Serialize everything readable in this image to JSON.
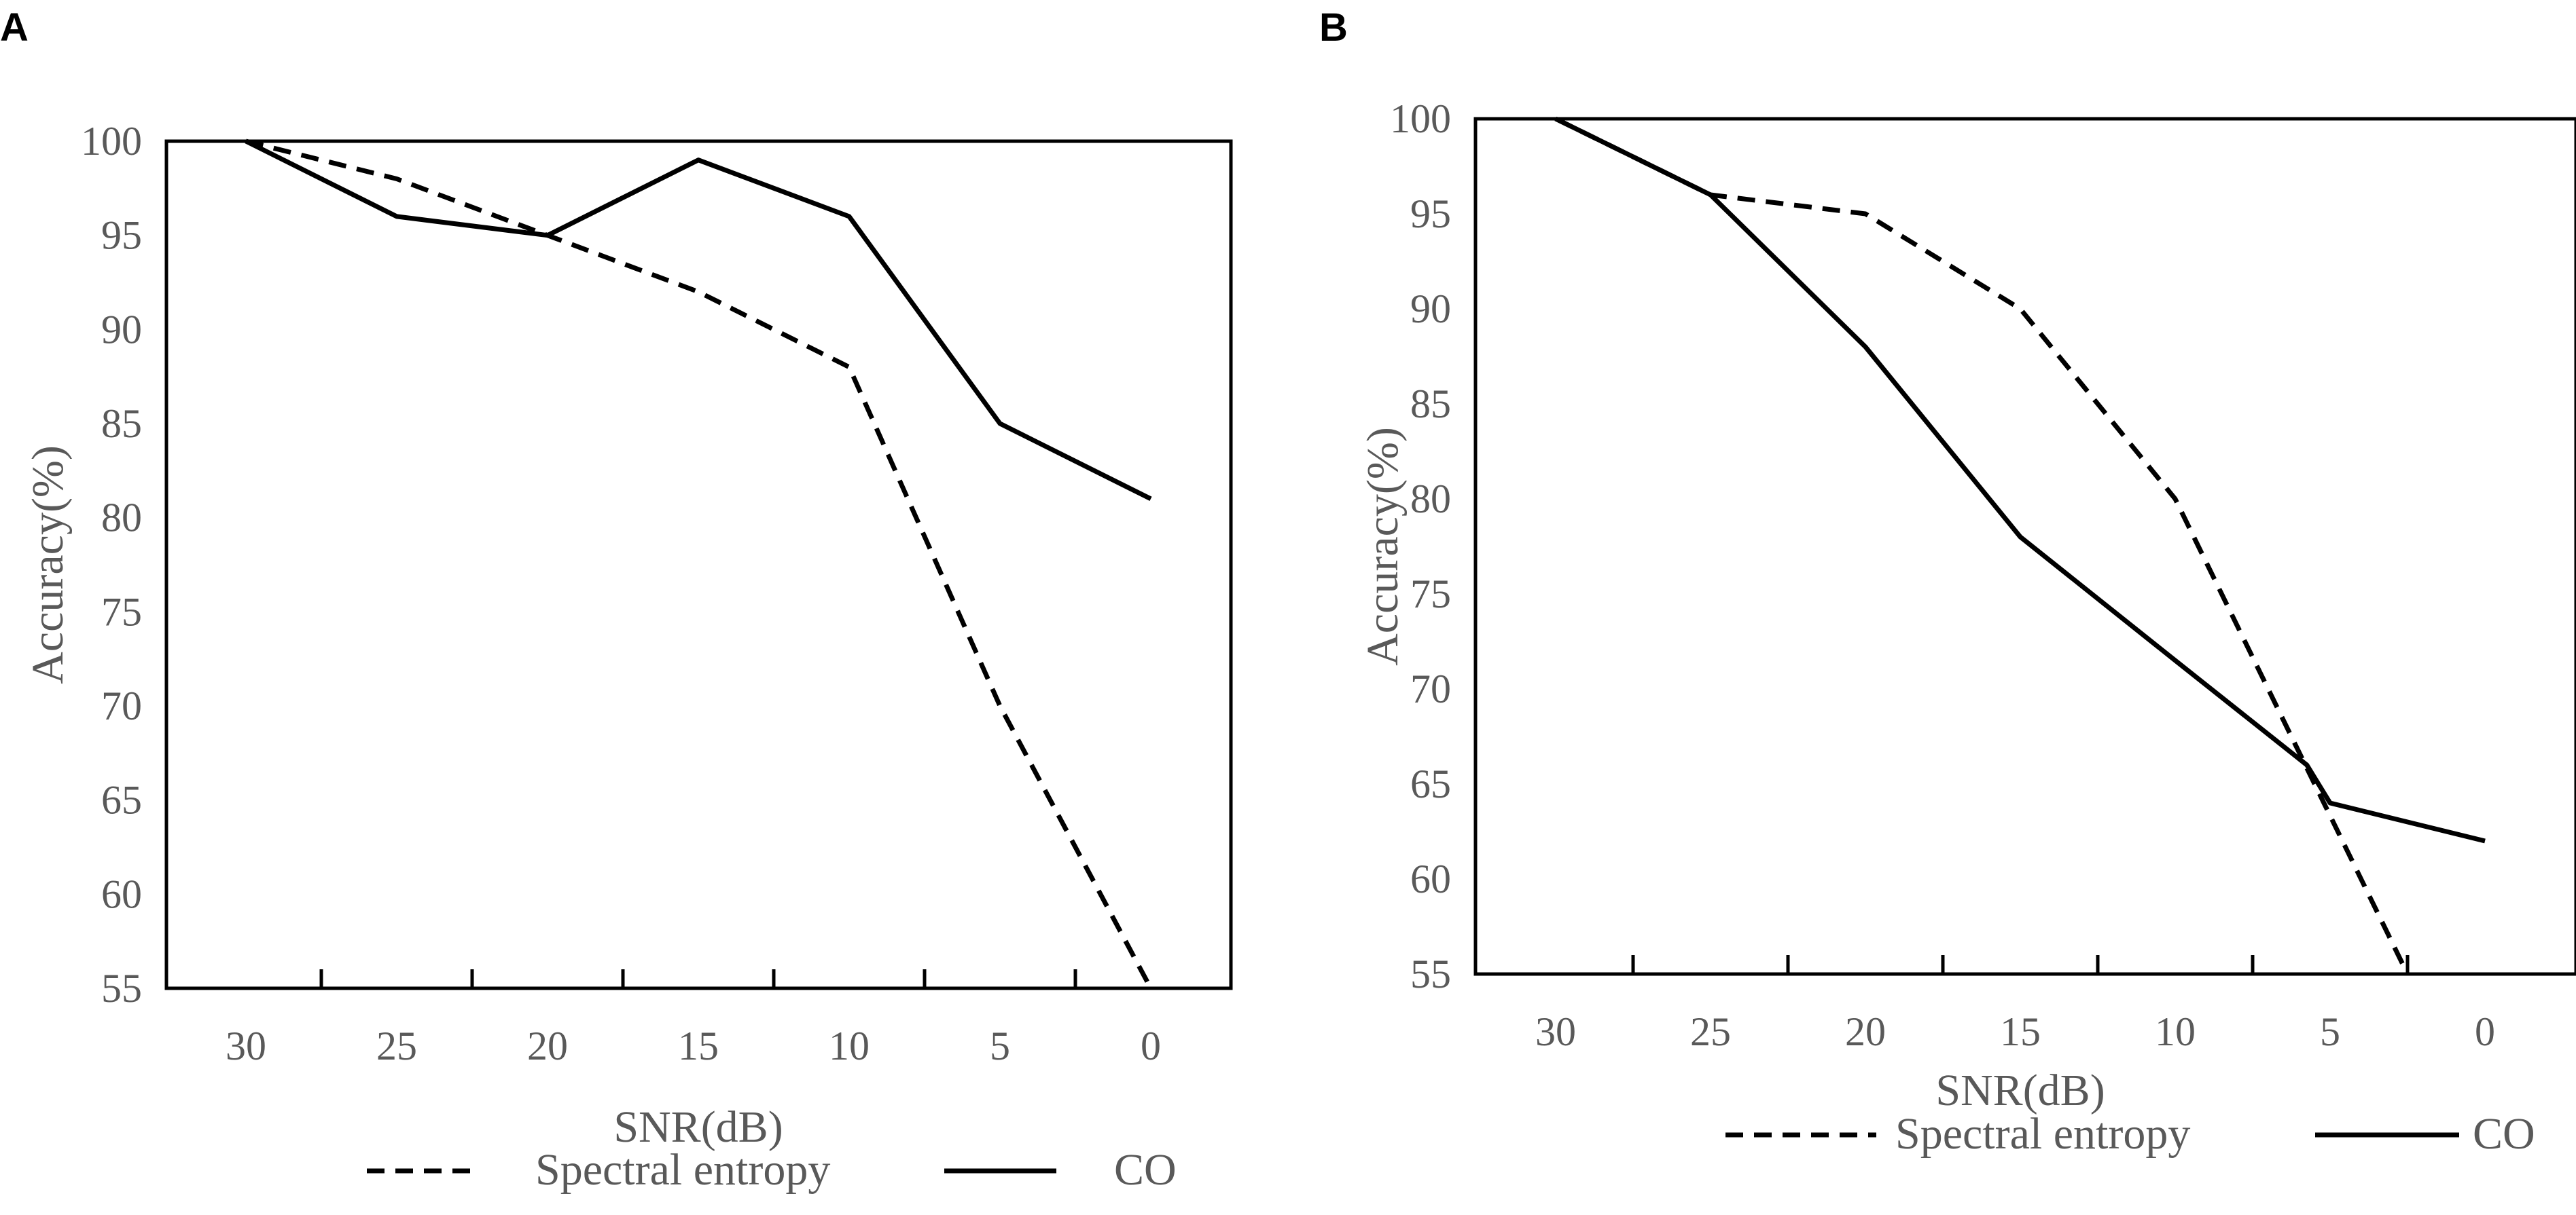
{
  "chart_data": [
    {
      "panel": "A",
      "type": "line",
      "xlabel": "SNR(dB)",
      "ylabel": "Accuracy(%)",
      "categories": [
        "30",
        "25",
        "20",
        "15",
        "10",
        "5",
        "0"
      ],
      "yticks": [
        "55",
        "60",
        "65",
        "70",
        "75",
        "80",
        "85",
        "90",
        "95",
        "100"
      ],
      "ylim": [
        55,
        100
      ],
      "series": [
        {
          "name": "Spectral entropy",
          "style": "dashed",
          "values": [
            100,
            98,
            95,
            92,
            88,
            70,
            55
          ]
        },
        {
          "name": "CO",
          "style": "solid",
          "values": [
            100,
            96,
            95,
            99,
            96,
            85,
            81
          ]
        }
      ],
      "legend_position": "bottom"
    },
    {
      "panel": "B",
      "type": "line",
      "xlabel": "SNR(dB)",
      "ylabel": "Accuracy(%)",
      "categories": [
        "30",
        "25",
        "20",
        "15",
        "10",
        "5",
        "0"
      ],
      "yticks": [
        "55",
        "60",
        "65",
        "70",
        "75",
        "80",
        "85",
        "90",
        "95",
        "100"
      ],
      "ylim": [
        55,
        100
      ],
      "series": [
        {
          "name": "Spectral entropy",
          "style": "dashed",
          "x": [
            0,
            1,
            2,
            3,
            4,
            5.5
          ],
          "values": [
            100,
            96,
            95,
            90,
            80,
            55
          ]
        },
        {
          "name": "CO",
          "style": "solid",
          "x": [
            0,
            1,
            2,
            3,
            4,
            4.85,
            5,
            6
          ],
          "values": [
            100,
            96,
            88,
            78,
            71.5,
            66,
            64,
            62
          ]
        }
      ],
      "legend_position": "bottom"
    }
  ]
}
